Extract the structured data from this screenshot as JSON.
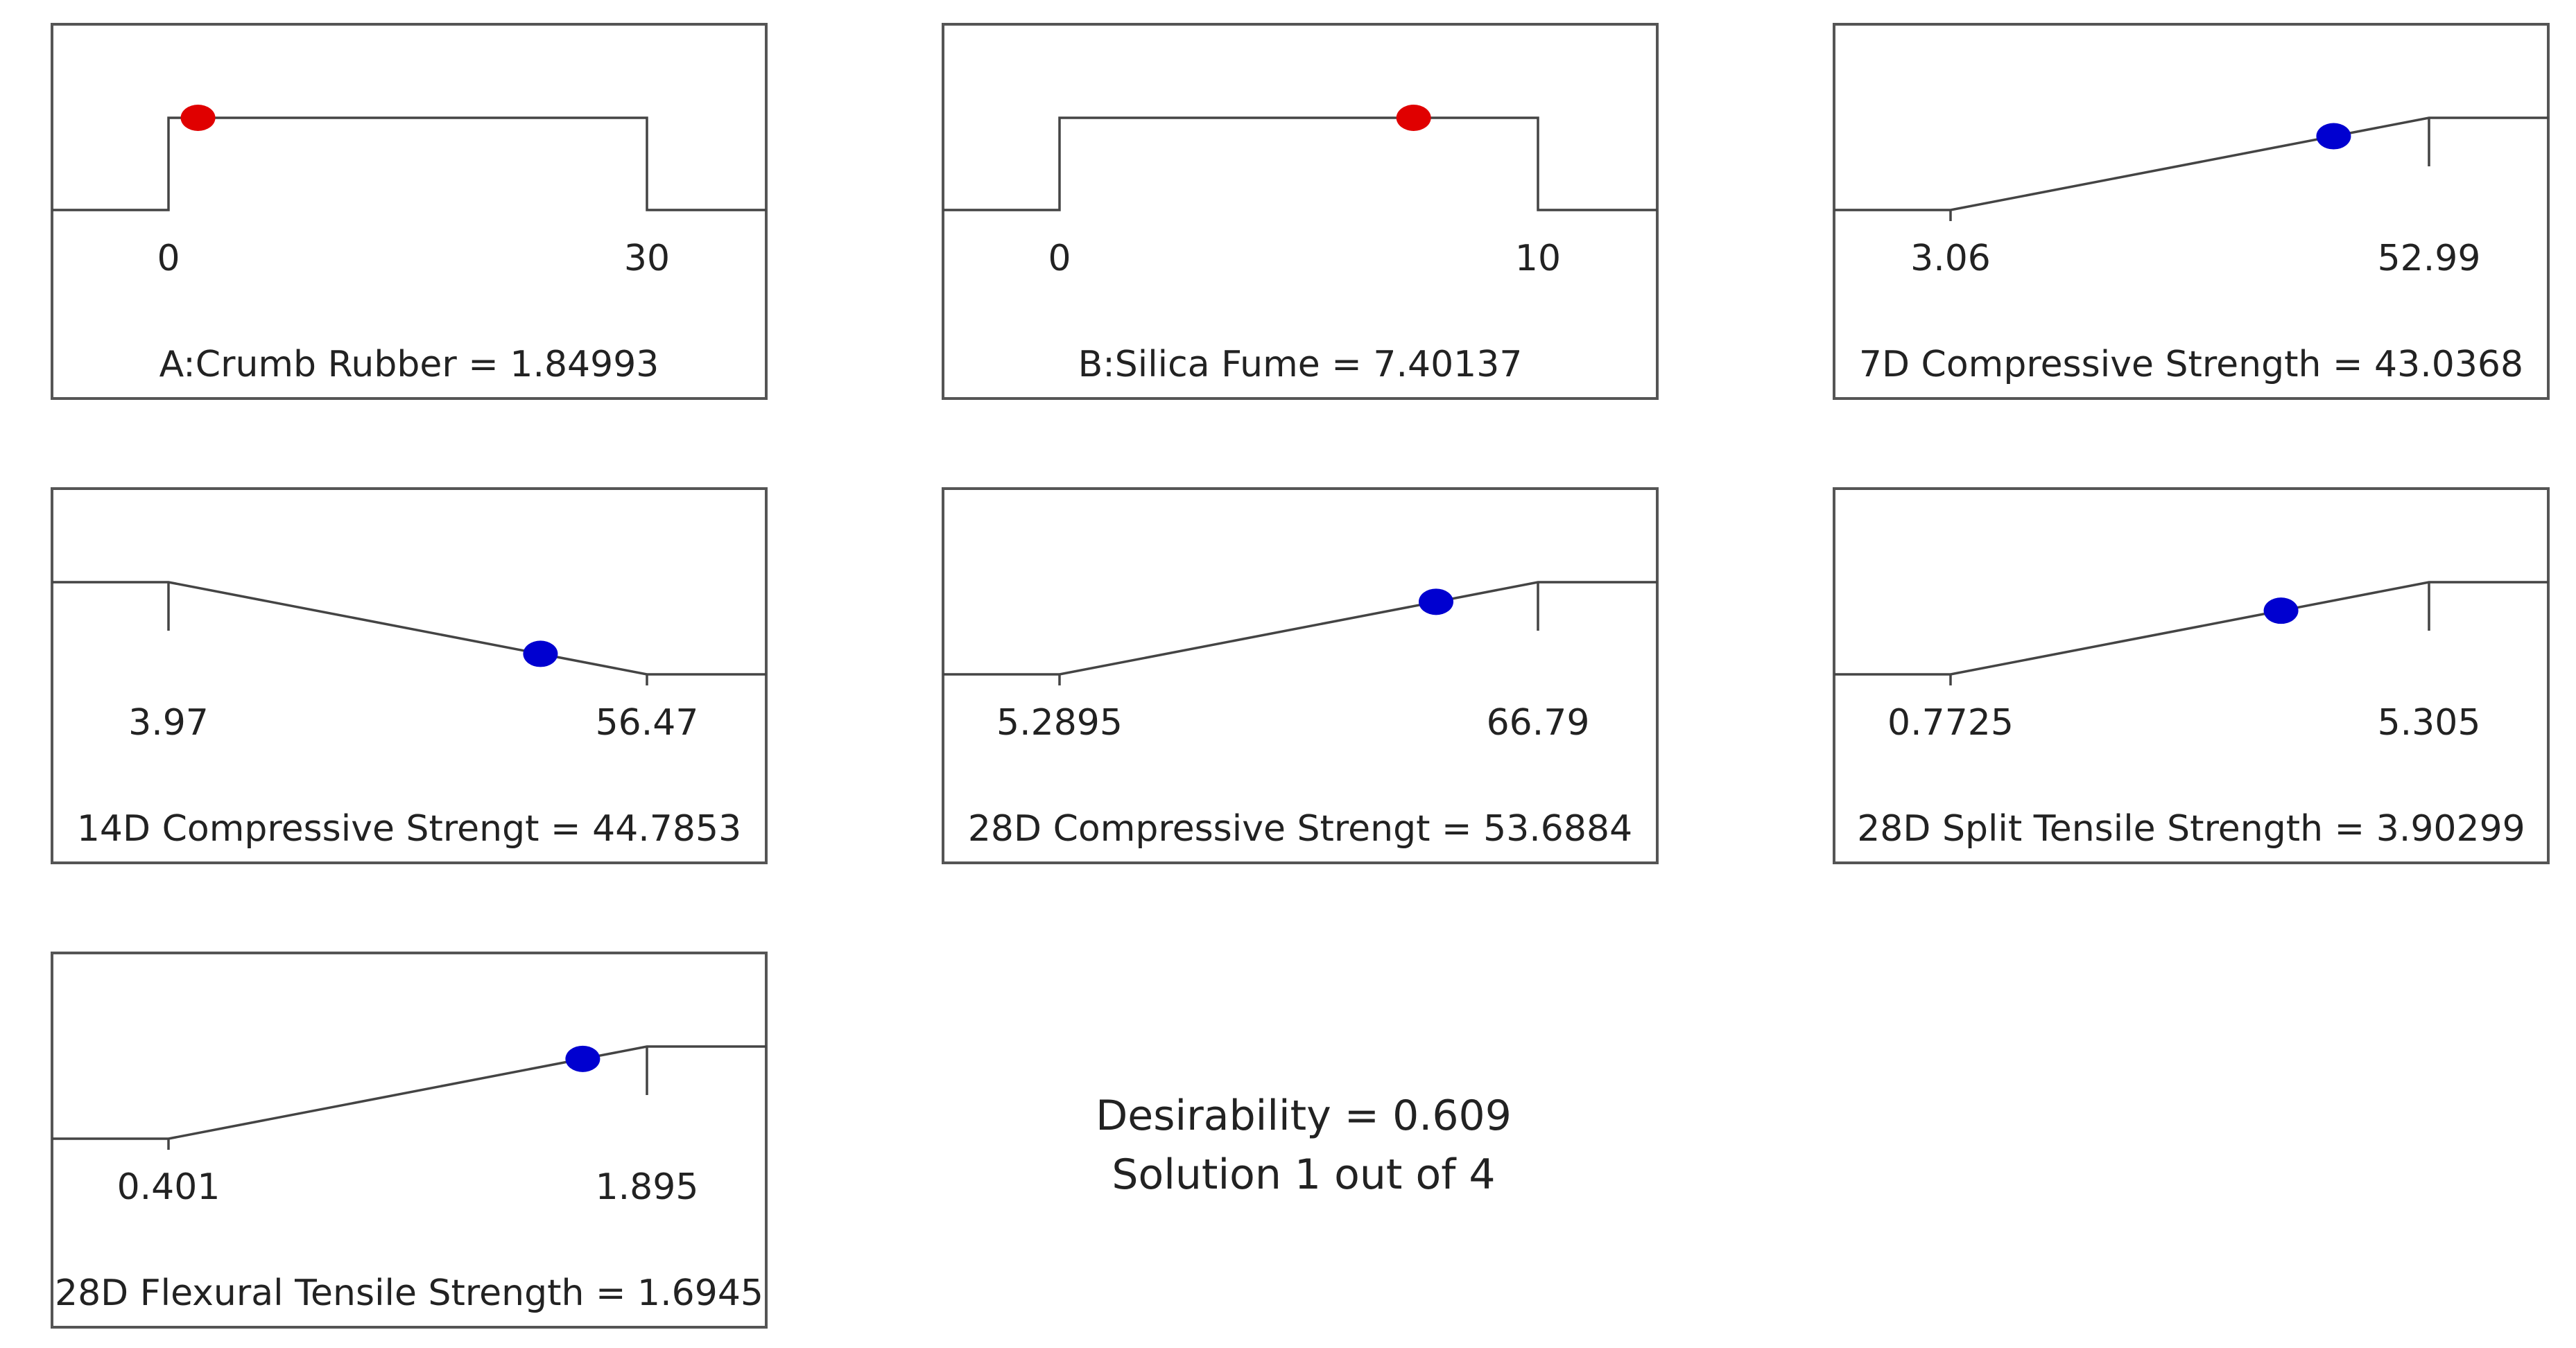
{
  "chart_data": {
    "type": "desirability-ramps",
    "colors": {
      "factor_point": "#e00000",
      "response_point": "#0000d0",
      "line": "#444444"
    },
    "panels": [
      {
        "kind": "factor",
        "label": "A:Crumb Rubber = 1.84993",
        "low": 0,
        "high": 30,
        "value": 1.84993,
        "low_label": "0",
        "high_label": "30",
        "goal": "in range"
      },
      {
        "kind": "factor",
        "label": "B:Silica Fume = 7.40137",
        "low": 0,
        "high": 10,
        "value": 7.40137,
        "low_label": "0",
        "high_label": "10",
        "goal": "in range"
      },
      {
        "kind": "response",
        "label": "7D Compressive Strength = 43.0368",
        "low": 3.06,
        "high": 52.99,
        "value": 43.0368,
        "low_label": "3.06",
        "high_label": "52.99",
        "goal": "maximize"
      },
      {
        "kind": "response",
        "label": "14D Compressive Strengt = 44.7853",
        "low": 3.97,
        "high": 56.47,
        "value": 44.7853,
        "low_label": "3.97",
        "high_label": "56.47",
        "goal": "minimize"
      },
      {
        "kind": "response",
        "label": "28D Compressive Strengt = 53.6884",
        "low": 5.2895,
        "high": 66.79,
        "value": 53.6884,
        "low_label": "5.2895",
        "high_label": "66.79",
        "goal": "maximize"
      },
      {
        "kind": "response",
        "label": "28D Split Tensile Strength = 3.90299",
        "low": 0.7725,
        "high": 5.305,
        "value": 3.90299,
        "low_label": "0.7725",
        "high_label": "5.305",
        "goal": "maximize"
      },
      {
        "kind": "response",
        "label": "28D Flexural Tensile Strength = 1.6945",
        "low": 0.401,
        "high": 1.895,
        "value": 1.6945,
        "low_label": "0.401",
        "high_label": "1.895",
        "goal": "maximize"
      }
    ],
    "desirability": "Desirability = 0.609",
    "solution": "Solution 1 out of 4"
  }
}
